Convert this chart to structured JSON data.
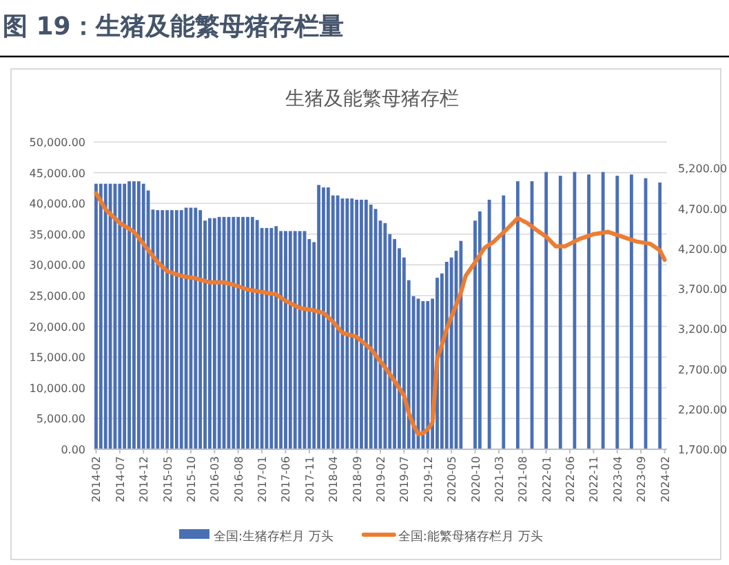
{
  "chart_data": {
    "type": "bar",
    "title": "生猪及能繁母猪存栏",
    "annotations": [
      "图 19：生猪及能繁母猪存栏量"
    ],
    "categories": [
      "2014-02",
      null,
      null,
      null,
      null,
      "2014-07",
      null,
      null,
      null,
      null,
      "2014-12",
      null,
      null,
      null,
      null,
      "2015-05",
      null,
      null,
      null,
      null,
      "2015-10",
      null,
      null,
      null,
      null,
      "2016-03",
      null,
      null,
      null,
      null,
      "2016-08",
      null,
      null,
      null,
      null,
      "2017-01",
      null,
      null,
      null,
      null,
      "2017-06",
      null,
      null,
      null,
      null,
      "2017-11",
      null,
      null,
      null,
      null,
      "2018-04",
      null,
      null,
      null,
      null,
      "2018-09",
      null,
      null,
      null,
      null,
      "2019-02",
      null,
      null,
      null,
      null,
      "2019-07",
      null,
      null,
      null,
      null,
      "2019-12",
      null,
      null,
      null,
      null,
      "2020-05",
      null,
      null,
      null,
      null,
      "2020-10",
      null,
      null,
      null,
      null,
      "2021-03",
      null,
      null,
      null,
      null,
      "2021-08",
      null,
      null,
      null,
      null,
      "2022-01",
      null,
      null,
      null,
      null,
      "2022-06",
      null,
      null,
      null,
      null,
      "2022-11",
      null,
      null,
      null,
      null,
      "2023-04",
      null,
      null,
      null,
      null,
      "2023-09",
      null,
      null,
      null,
      null,
      "2024-02"
    ],
    "series": [
      {
        "name": "全国:生猪存栏月 万头",
        "color": "#4a6fb5",
        "values": [
          43200,
          43200,
          43200,
          43200,
          43200,
          43200,
          43200,
          43600,
          43600,
          43600,
          43200,
          42100,
          39000,
          38900,
          38900,
          38900,
          38900,
          38900,
          38900,
          39300,
          39300,
          39300,
          38900,
          37200,
          37600,
          37600,
          37800,
          37800,
          37800,
          37800,
          37800,
          37800,
          37800,
          37800,
          37300,
          36000,
          36000,
          36000,
          36300,
          35500,
          35500,
          35500,
          35500,
          35500,
          35500,
          34200,
          33700,
          43000,
          42600,
          42600,
          41300,
          41300,
          40800,
          40800,
          40800,
          40600,
          40600,
          40600,
          39800,
          39100,
          37200,
          36800,
          35000,
          34200,
          32700,
          31200,
          27500,
          24900,
          24500,
          24100,
          24100,
          24500,
          27900,
          28600,
          30500,
          31200,
          32300,
          33900,
          null,
          null,
          37200,
          38700,
          null,
          40600,
          null,
          null,
          41300,
          null,
          null,
          43600,
          null,
          null,
          43600,
          null,
          null,
          45100,
          null,
          null,
          44500,
          null,
          null,
          45100,
          null,
          null,
          44700,
          null,
          null,
          45100,
          null,
          null,
          44500,
          null,
          null,
          44700,
          null,
          null,
          44100,
          null,
          null,
          43400,
          null
        ]
      },
      {
        "name": "全国:能繁母猪存栏月 万头",
        "type": "line",
        "axis": "y2",
        "color": "#ed7d31",
        "values": [
          4890,
          null,
          4690,
          null,
          null,
          4520,
          null,
          null,
          4410,
          null,
          4260,
          null,
          null,
          4030,
          null,
          3920,
          null,
          null,
          3860,
          null,
          null,
          3830,
          null,
          null,
          3780,
          null,
          null,
          3780,
          null,
          3750,
          null,
          null,
          3690,
          null,
          null,
          3660,
          null,
          null,
          3630,
          null,
          3550,
          null,
          null,
          3460,
          null,
          null,
          3430,
          null,
          3400,
          null,
          3290,
          null,
          3150,
          null,
          null,
          3100,
          null,
          null,
          2950,
          null,
          null,
          2720,
          null,
          2550,
          null,
          2370,
          2150,
          2000,
          1890,
          1900,
          1950,
          2030,
          2830,
          3000,
          3200,
          3350,
          3500,
          3650,
          3860,
          null,
          4030,
          null,
          4210,
          null,
          4290,
          null,
          null,
          4460,
          null,
          4580,
          null,
          4520,
          null,
          4430,
          null,
          4350,
          null,
          4230,
          null,
          4230,
          null,
          null,
          4320,
          null,
          null,
          4380,
          null,
          null,
          4410,
          null,
          null,
          4350,
          null,
          null,
          4290,
          null,
          null,
          4260,
          null,
          4180,
          4060
        ]
      }
    ],
    "ylim": [
      0,
      50000
    ],
    "yticks": [
      {
        "value": 0,
        "label": "0.00"
      },
      {
        "value": 5000,
        "label": "5,000.00"
      },
      {
        "value": 10000,
        "label": "10,000.00"
      },
      {
        "value": 15000,
        "label": "15,000.00"
      },
      {
        "value": 20000,
        "label": "20,000.00"
      },
      {
        "value": 25000,
        "label": "25,000.00"
      },
      {
        "value": 30000,
        "label": "30,000.00"
      },
      {
        "value": 35000,
        "label": "35,000.00"
      },
      {
        "value": 40000,
        "label": "40,000.00"
      },
      {
        "value": 45000,
        "label": "45,000.00"
      },
      {
        "value": 50000,
        "label": "50,000.00"
      }
    ],
    "y2lim": [
      1700,
      5530
    ],
    "y2ticks": [
      {
        "value": 1700,
        "label": "1,700.00"
      },
      {
        "value": 2200,
        "label": "2,200.00"
      },
      {
        "value": 2700,
        "label": "2,700.00"
      },
      {
        "value": 3200,
        "label": "3,200.00"
      },
      {
        "value": 3700,
        "label": "3,700.00"
      },
      {
        "value": 4200,
        "label": "4,200.00"
      },
      {
        "value": 4700,
        "label": "4,700.00"
      },
      {
        "value": 5200,
        "label": "5,200.00"
      }
    ],
    "grid": "y",
    "legend": "bottom",
    "marker": "none",
    "line_style": "solid"
  }
}
